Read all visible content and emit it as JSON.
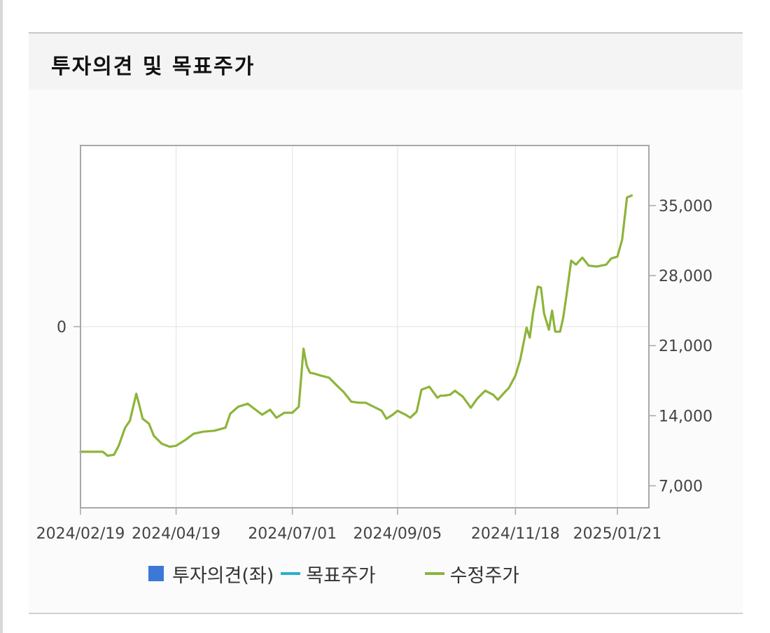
{
  "header": {
    "title": "투자의견 및 목표주가"
  },
  "colors": {
    "opinion": "#3b78d8",
    "target_price": "#2ab0c9",
    "adjusted_price": "#8db43a",
    "frame": "#a8a8a8",
    "grid": "#e6e6e6"
  },
  "chart_data": {
    "type": "line",
    "x_tick_labels": [
      "2024/02/19",
      "2024/04/19",
      "2024/07/01",
      "2024/09/05",
      "2024/11/18",
      "2025/01/21"
    ],
    "left_axis": {
      "ticks": [
        "0"
      ],
      "ylim": [
        -1,
        1
      ]
    },
    "right_axis": {
      "ticks": [
        "7,000",
        "14,000",
        "21,000",
        "28,000",
        "35,000"
      ],
      "ylim": [
        4800,
        41000
      ]
    },
    "grid": true,
    "legend": {
      "placement": "bottom",
      "items": [
        {
          "label": "투자의견(좌)",
          "icon": "square-swatch"
        },
        {
          "label": "목표주가",
          "icon": "line-swatch"
        },
        {
          "label": "수정주가",
          "icon": "line-swatch"
        }
      ]
    },
    "series": [
      {
        "name": "수정주가",
        "x": [
          "2024/02/19",
          "2024/02/27",
          "2024/03/04",
          "2024/03/07",
          "2024/03/11",
          "2024/03/14",
          "2024/03/18",
          "2024/03/21",
          "2024/03/25",
          "2024/03/27",
          "2024/03/29",
          "2024/04/02",
          "2024/04/05",
          "2024/04/10",
          "2024/04/15",
          "2024/04/19",
          "2024/04/25",
          "2024/04/30",
          "2024/05/06",
          "2024/05/13",
          "2024/05/20",
          "2024/05/23",
          "2024/05/28",
          "2024/06/03",
          "2024/06/07",
          "2024/06/12",
          "2024/06/17",
          "2024/06/21",
          "2024/06/26",
          "2024/07/01",
          "2024/07/05",
          "2024/07/08",
          "2024/07/10",
          "2024/07/12",
          "2024/07/15",
          "2024/07/19",
          "2024/07/24",
          "2024/07/29",
          "2024/08/02",
          "2024/08/07",
          "2024/08/12",
          "2024/08/16",
          "2024/08/21",
          "2024/08/26",
          "2024/08/29",
          "2024/09/02",
          "2024/09/05",
          "2024/09/10",
          "2024/09/13",
          "2024/09/17",
          "2024/09/20",
          "2024/09/25",
          "2024/09/30",
          "2024/10/02",
          "2024/10/04",
          "2024/10/08",
          "2024/10/11",
          "2024/10/16",
          "2024/10/21",
          "2024/10/25",
          "2024/10/30",
          "2024/11/04",
          "2024/11/07",
          "2024/11/11",
          "2024/11/14",
          "2024/11/18",
          "2024/11/21",
          "2024/11/25",
          "2024/11/27",
          "2024/11/29",
          "2024/12/02",
          "2024/12/04",
          "2024/12/06",
          "2024/12/09",
          "2024/12/11",
          "2024/12/13",
          "2024/12/16",
          "2024/12/18",
          "2024/12/20",
          "2024/12/23",
          "2024/12/26",
          "2024/12/30",
          "2025/01/03",
          "2025/01/08",
          "2025/01/14",
          "2025/01/17",
          "2025/01/21",
          "2025/01/24",
          "2025/01/27",
          "2025/01/30"
        ],
        "y": [
          10400,
          10400,
          10400,
          10000,
          10100,
          11000,
          12800,
          13500,
          16200,
          15000,
          13700,
          13200,
          12000,
          11200,
          10900,
          11000,
          11600,
          12200,
          12400,
          12500,
          12800,
          14200,
          14900,
          15200,
          14700,
          14100,
          14600,
          13800,
          14300,
          14300,
          14900,
          20700,
          19000,
          18300,
          18200,
          18000,
          17800,
          17000,
          16400,
          15400,
          15300,
          15300,
          14900,
          14500,
          13700,
          14100,
          14500,
          14100,
          13800,
          14400,
          16600,
          16900,
          15800,
          16000,
          16000,
          16100,
          16500,
          15900,
          14800,
          15700,
          16500,
          16100,
          15600,
          16300,
          16800,
          18000,
          19600,
          22800,
          21800,
          24200,
          26900,
          26800,
          24200,
          22600,
          24500,
          22400,
          22400,
          23800,
          26000,
          29500,
          29100,
          29800,
          29000,
          28900,
          29100,
          29700,
          29900,
          31600,
          35800,
          36000
        ]
      }
    ]
  }
}
